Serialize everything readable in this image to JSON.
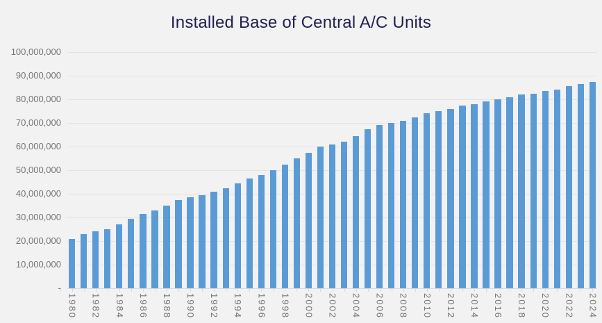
{
  "title": "Installed Base of Central A/C Units",
  "colors": {
    "background": "#f2f2f3",
    "bar": "#5b9bd5",
    "title_text": "#212150",
    "axis_text": "#757578",
    "gridline": "#e3e3e5",
    "axis_line": "#d9d9db"
  },
  "chart_data": {
    "type": "bar",
    "title": "Installed Base of Central A/C Units",
    "xlabel": "",
    "ylabel": "",
    "legend": false,
    "grid": true,
    "ylim": [
      0,
      100000000
    ],
    "y_tick_interval": 10000000,
    "y_ticks": [
      {
        "value": 0,
        "label": "-"
      },
      {
        "value": 10000000,
        "label": "10,000,000"
      },
      {
        "value": 20000000,
        "label": "20,000,000"
      },
      {
        "value": 30000000,
        "label": "30,000,000"
      },
      {
        "value": 40000000,
        "label": "40,000,000"
      },
      {
        "value": 50000000,
        "label": "50,000,000"
      },
      {
        "value": 60000000,
        "label": "60,000,000"
      },
      {
        "value": 70000000,
        "label": "70,000,000"
      },
      {
        "value": 80000000,
        "label": "80,000,000"
      },
      {
        "value": 90000000,
        "label": "90,000,000"
      },
      {
        "value": 100000000,
        "label": "100,000,000"
      }
    ],
    "x_tick_label_every": 2,
    "x_tick_labels": [
      "1980",
      "1982",
      "1984",
      "1986",
      "1988",
      "1990",
      "1992",
      "1994",
      "1996",
      "1998",
      "2000",
      "2002",
      "2004",
      "2006",
      "2008",
      "2010",
      "2012",
      "2014",
      "2016",
      "2018",
      "2020",
      "2022",
      "2024"
    ],
    "categories": [
      "1980",
      "1981",
      "1982",
      "1983",
      "1984",
      "1985",
      "1986",
      "1987",
      "1988",
      "1989",
      "1990",
      "1991",
      "1992",
      "1993",
      "1994",
      "1995",
      "1996",
      "1997",
      "1998",
      "1999",
      "2000",
      "2001",
      "2002",
      "2003",
      "2004",
      "2005",
      "2006",
      "2007",
      "2008",
      "2009",
      "2010",
      "2011",
      "2012",
      "2013",
      "2014",
      "2015",
      "2016",
      "2017",
      "2018",
      "2019",
      "2020",
      "2021",
      "2022",
      "2023",
      "2024"
    ],
    "values": [
      21000000,
      23000000,
      24000000,
      25000000,
      27000000,
      29500000,
      31500000,
      33000000,
      35000000,
      37500000,
      38500000,
      39500000,
      41000000,
      42500000,
      44500000,
      46500000,
      48000000,
      50000000,
      52500000,
      55000000,
      57500000,
      60000000,
      61000000,
      62000000,
      64500000,
      67500000,
      69000000,
      70000000,
      71000000,
      72500000,
      74000000,
      75000000,
      76000000,
      77500000,
      78000000,
      79000000,
      80000000,
      81000000,
      82000000,
      82500000,
      83500000,
      84000000,
      85500000,
      86500000,
      87500000
    ]
  }
}
